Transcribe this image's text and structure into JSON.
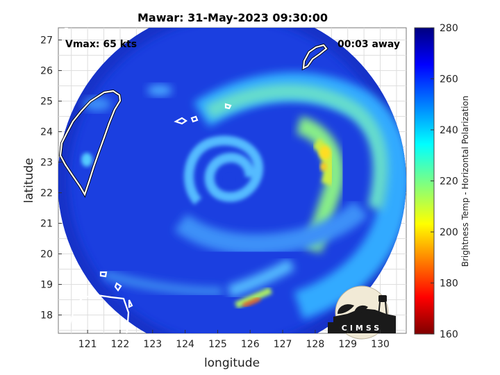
{
  "title": "Mawar: 31-May-2023 09:30:00",
  "annotations": {
    "vmax": "Vmax: 65 kts",
    "time_away": "00:03 away"
  },
  "axes": {
    "xlabel": "longitude",
    "ylabel": "latitude",
    "xlim": [
      120.1,
      130.8
    ],
    "ylim": [
      17.4,
      27.4
    ],
    "xticks": [
      "121",
      "122",
      "123",
      "124",
      "125",
      "126",
      "127",
      "128",
      "129",
      "130"
    ],
    "yticks": [
      "18",
      "19",
      "20",
      "21",
      "22",
      "23",
      "24",
      "25",
      "26",
      "27"
    ],
    "grid": true
  },
  "colorbar": {
    "label": "Brightness Temp - Horizontal Polarization",
    "range": [
      160,
      280
    ],
    "ticks": [
      "160",
      "180",
      "200",
      "220",
      "240",
      "260",
      "280"
    ],
    "colormap": "jet"
  },
  "logo": {
    "text": "CIMSS"
  },
  "colors": {
    "background_disk": "#1b3fe0",
    "coastline": "#ffffff",
    "grid": "#c8c8c8"
  },
  "chart_data": {
    "type": "heatmap",
    "storm_center": {
      "lon": 125.3,
      "lat": 22.5
    },
    "swath_center": {
      "lon": 125.5,
      "lat": 22.4
    },
    "swath_radius_deg": 5.3,
    "min_brightness_temp_approx": 190,
    "background_brightness_temp_approx": 262
  }
}
